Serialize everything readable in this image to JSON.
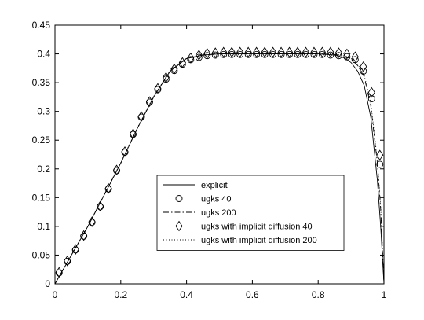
{
  "chart_data": {
    "type": "line",
    "title": "",
    "xlabel": "",
    "ylabel": "",
    "xlim": [
      0,
      1
    ],
    "ylim": [
      0,
      0.45
    ],
    "xticks": [
      "0",
      "0.2",
      "0.4",
      "0.6",
      "0.8",
      "1"
    ],
    "xtick_values": [
      0,
      0.2,
      0.4,
      0.6,
      0.8,
      1
    ],
    "yticks": [
      "0",
      "0.05",
      "0.1",
      "0.15",
      "0.2",
      "0.25",
      "0.3",
      "0.35",
      "0.4",
      "0.45"
    ],
    "ytick_values": [
      0,
      0.05,
      0.1,
      0.15,
      0.2,
      0.25,
      0.3,
      0.35,
      0.4,
      0.45
    ],
    "grid": false,
    "legend_position": "center",
    "series": [
      {
        "name": "explicit",
        "style": "solid",
        "x": [
          0,
          0.05,
          0.1,
          0.15,
          0.2,
          0.25,
          0.3,
          0.35,
          0.4,
          0.45,
          0.5,
          0.6,
          0.7,
          0.8,
          0.85,
          0.88,
          0.9,
          0.92,
          0.94,
          0.96,
          0.98,
          0.99,
          1.0
        ],
        "y": [
          0.0,
          0.05,
          0.1,
          0.155,
          0.21,
          0.27,
          0.325,
          0.37,
          0.392,
          0.398,
          0.4,
          0.4,
          0.4,
          0.4,
          0.398,
          0.393,
          0.385,
          0.37,
          0.345,
          0.29,
          0.18,
          0.1,
          0.0
        ]
      },
      {
        "name": "ugks 40",
        "style": "circle",
        "x": [
          0.0125,
          0.0375,
          0.0625,
          0.0875,
          0.1125,
          0.1375,
          0.1625,
          0.1875,
          0.2125,
          0.2375,
          0.2625,
          0.2875,
          0.3125,
          0.3375,
          0.3625,
          0.3875,
          0.4125,
          0.4375,
          0.4625,
          0.4875,
          0.5125,
          0.5375,
          0.5625,
          0.5875,
          0.6125,
          0.6375,
          0.6625,
          0.6875,
          0.7125,
          0.7375,
          0.7625,
          0.7875,
          0.8125,
          0.8375,
          0.8625,
          0.8875,
          0.9125,
          0.9375,
          0.9625,
          0.9875
        ],
        "y": [
          0.019,
          0.039,
          0.059,
          0.083,
          0.107,
          0.134,
          0.165,
          0.197,
          0.229,
          0.26,
          0.29,
          0.316,
          0.338,
          0.356,
          0.371,
          0.382,
          0.39,
          0.394,
          0.397,
          0.398,
          0.399,
          0.399,
          0.399,
          0.399,
          0.399,
          0.399,
          0.399,
          0.399,
          0.399,
          0.399,
          0.399,
          0.399,
          0.399,
          0.398,
          0.397,
          0.395,
          0.39,
          0.37,
          0.322,
          0.208
        ]
      },
      {
        "name": "ugks 200",
        "style": "dashdot",
        "x": [
          0,
          0.05,
          0.1,
          0.15,
          0.2,
          0.25,
          0.3,
          0.35,
          0.4,
          0.45,
          0.5,
          0.6,
          0.7,
          0.8,
          0.85,
          0.88,
          0.9,
          0.92,
          0.94,
          0.96,
          0.98,
          0.99,
          1.0
        ],
        "y": [
          0.0,
          0.05,
          0.1,
          0.155,
          0.21,
          0.27,
          0.325,
          0.37,
          0.392,
          0.398,
          0.4,
          0.4,
          0.4,
          0.4,
          0.399,
          0.396,
          0.391,
          0.38,
          0.36,
          0.31,
          0.21,
          0.13,
          0.0
        ]
      },
      {
        "name": "ugks with implicit diffusion 40",
        "style": "diamond",
        "x": [
          0.0125,
          0.0375,
          0.0625,
          0.0875,
          0.1125,
          0.1375,
          0.1625,
          0.1875,
          0.2125,
          0.2375,
          0.2625,
          0.2875,
          0.3125,
          0.3375,
          0.3625,
          0.3875,
          0.4125,
          0.4375,
          0.4625,
          0.4875,
          0.5125,
          0.5375,
          0.5625,
          0.5875,
          0.6125,
          0.6375,
          0.6625,
          0.6875,
          0.7125,
          0.7375,
          0.7625,
          0.7875,
          0.8125,
          0.8375,
          0.8625,
          0.8875,
          0.9125,
          0.9375,
          0.9625,
          0.9875
        ],
        "y": [
          0.02,
          0.04,
          0.06,
          0.084,
          0.108,
          0.135,
          0.166,
          0.198,
          0.23,
          0.261,
          0.291,
          0.317,
          0.34,
          0.359,
          0.374,
          0.385,
          0.393,
          0.398,
          0.401,
          0.402,
          0.403,
          0.403,
          0.403,
          0.403,
          0.403,
          0.403,
          0.403,
          0.403,
          0.403,
          0.403,
          0.403,
          0.403,
          0.403,
          0.403,
          0.402,
          0.4,
          0.395,
          0.378,
          0.333,
          0.224
        ]
      },
      {
        "name": "ugks with implicit diffusion 200",
        "style": "dotted",
        "x": [
          0,
          0.05,
          0.1,
          0.15,
          0.2,
          0.25,
          0.3,
          0.35,
          0.4,
          0.45,
          0.5,
          0.6,
          0.7,
          0.8,
          0.85,
          0.88,
          0.9,
          0.92,
          0.94,
          0.96,
          0.98,
          0.99,
          1.0
        ],
        "y": [
          0.0,
          0.05,
          0.1,
          0.156,
          0.211,
          0.271,
          0.326,
          0.371,
          0.393,
          0.399,
          0.401,
          0.401,
          0.401,
          0.401,
          0.4,
          0.397,
          0.392,
          0.382,
          0.363,
          0.315,
          0.215,
          0.135,
          0.0
        ]
      }
    ]
  }
}
